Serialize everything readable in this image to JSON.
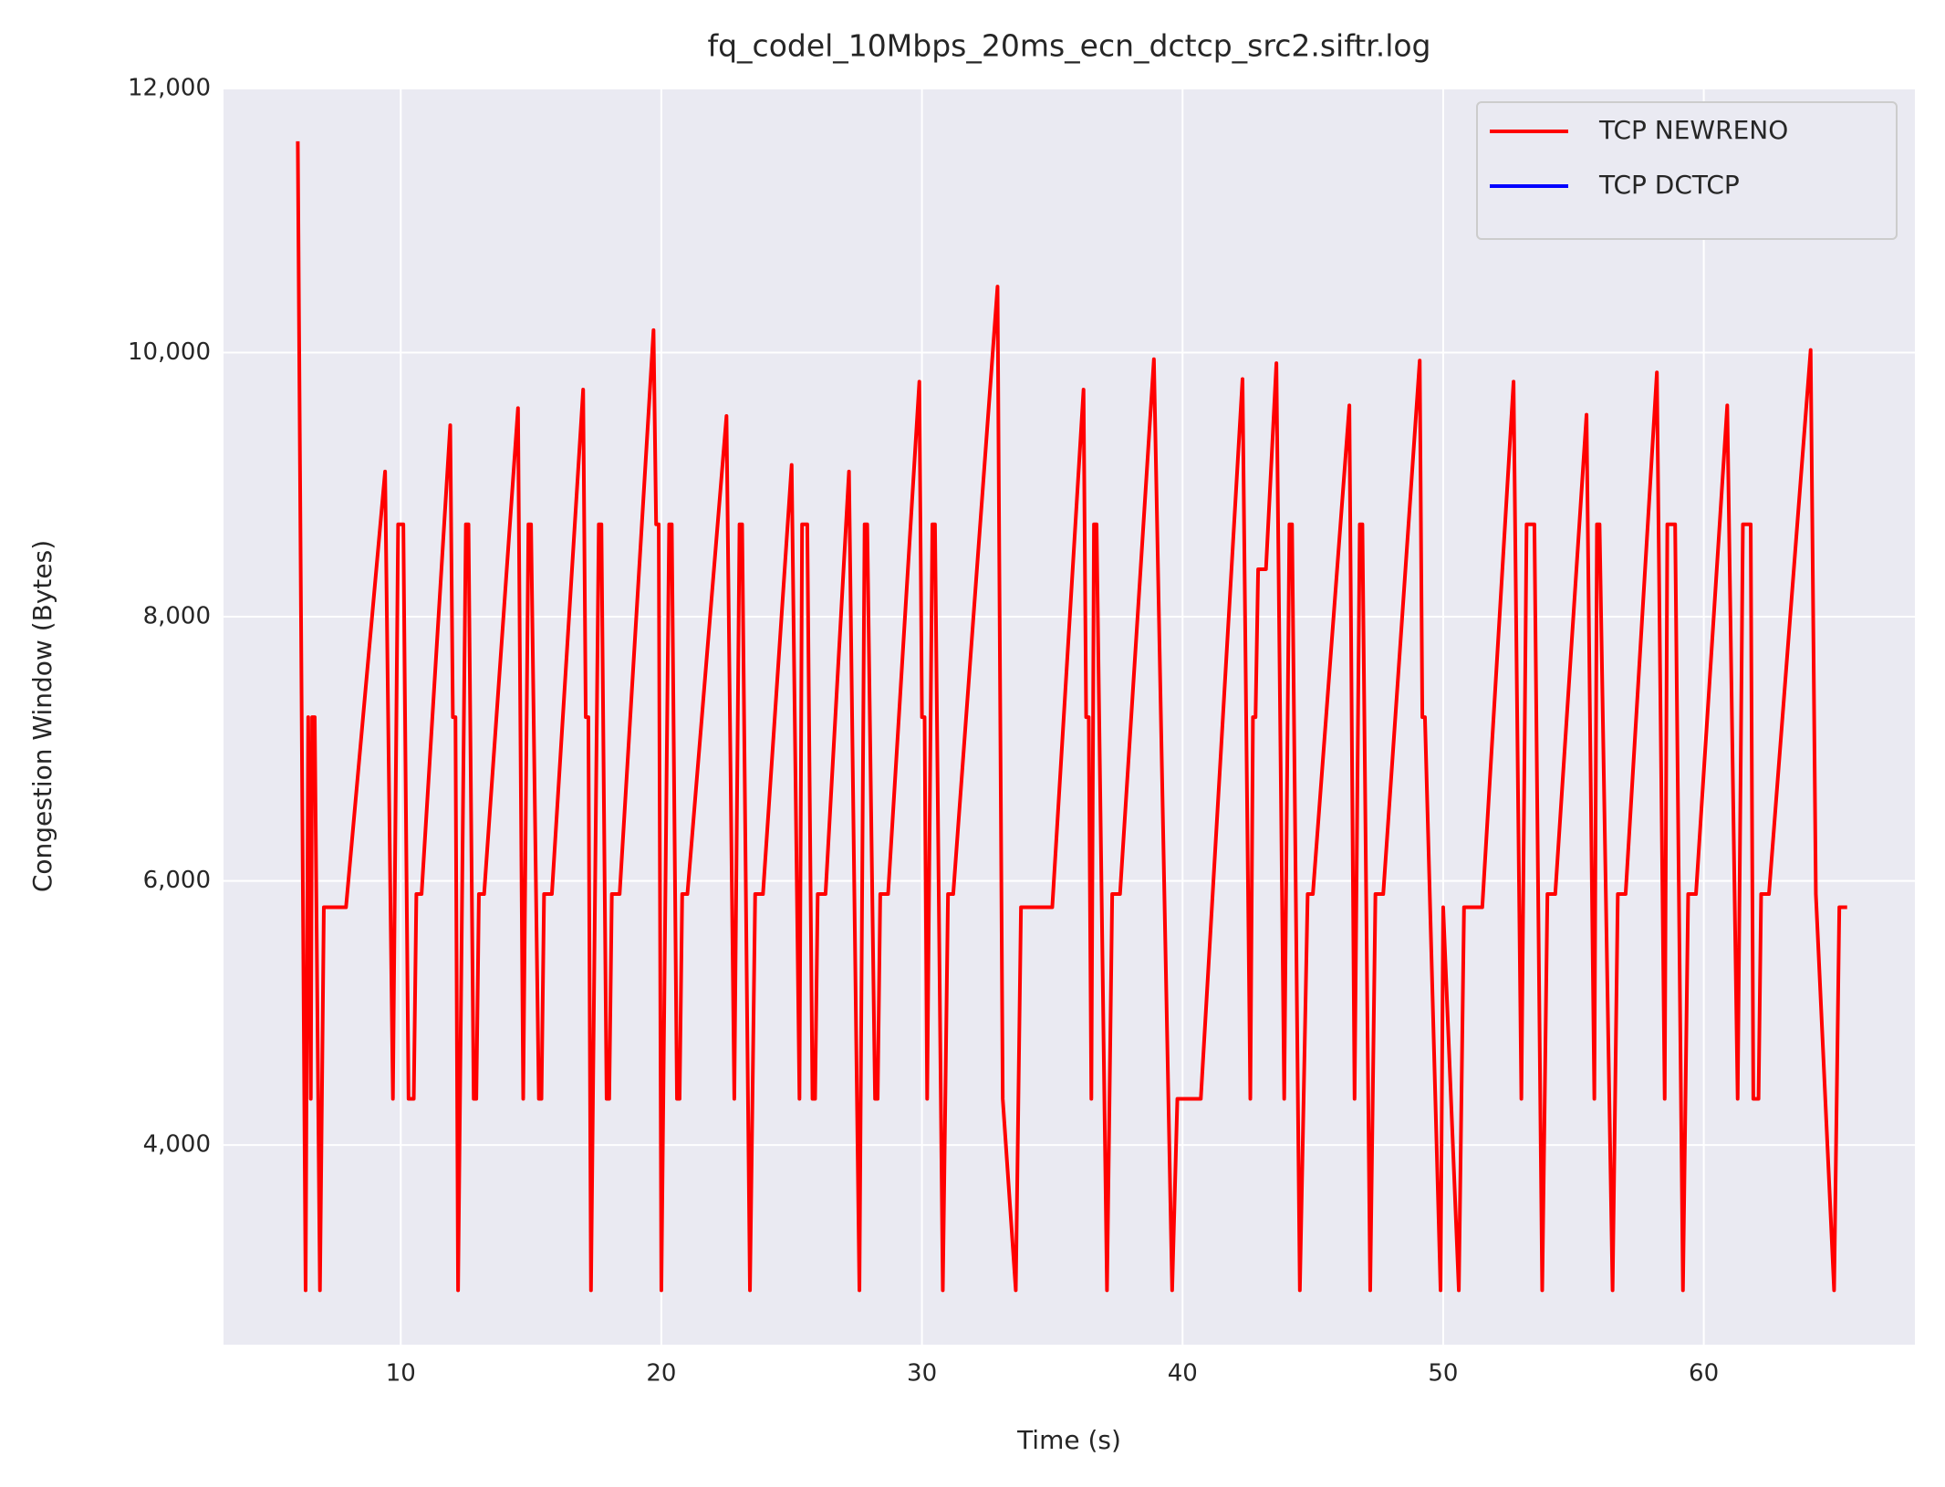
{
  "chart_data": {
    "type": "line",
    "title": "fq_codel_10Mbps_20ms_ecn_dctcp_src2.siftr.log",
    "x_label": "Time (s)",
    "y_label": "Congestion Window (Bytes)",
    "xlim": [
      3.2,
      68.1
    ],
    "ylim": [
      2488,
      12000
    ],
    "xticks": [
      10,
      20,
      30,
      40,
      50,
      60
    ],
    "yticks": [
      {
        "value": 4000,
        "label": "4,000"
      },
      {
        "value": 6000,
        "label": "6,000"
      },
      {
        "value": 8000,
        "label": "8,000"
      },
      {
        "value": 10000,
        "label": "10,000"
      },
      {
        "value": 12000,
        "label": "12,000"
      }
    ],
    "grid": true,
    "legend": "upper right",
    "series": [
      {
        "name": "TCP NEWRENO",
        "color": "#ff0000",
        "x": [
          6.05,
          6.35,
          6.45,
          6.55,
          6.6,
          6.7,
          6.9,
          7.05,
          7.9,
          9.4,
          9.7,
          9.9,
          10.1,
          10.3,
          10.5,
          10.6,
          10.8,
          11.9,
          12.0,
          12.1,
          12.2,
          12.5,
          12.6,
          12.8,
          12.9,
          13.0,
          13.2,
          14.5,
          14.7,
          14.9,
          15.0,
          15.3,
          15.4,
          15.5,
          15.8,
          17.0,
          17.1,
          17.2,
          17.3,
          17.6,
          17.7,
          17.9,
          18.0,
          18.1,
          18.4,
          19.7,
          19.8,
          19.9,
          20.0,
          20.3,
          20.4,
          20.6,
          20.7,
          20.8,
          21.0,
          22.5,
          22.8,
          23.0,
          23.1,
          23.4,
          23.6,
          23.9,
          25.0,
          25.3,
          25.4,
          25.6,
          25.8,
          25.9,
          26.0,
          26.3,
          27.2,
          27.6,
          27.8,
          27.9,
          28.2,
          28.3,
          28.4,
          28.7,
          29.9,
          30.0,
          30.1,
          30.2,
          30.4,
          30.5,
          30.8,
          31.0,
          31.2,
          32.9,
          33.1,
          33.6,
          33.8,
          35.0,
          36.2,
          36.3,
          36.4,
          36.5,
          36.6,
          36.7,
          37.1,
          37.3,
          37.6,
          38.9,
          39.6,
          39.8,
          40.7,
          42.3,
          42.6,
          42.7,
          42.8,
          42.9,
          43.2,
          43.6,
          43.9,
          44.1,
          44.2,
          44.5,
          44.8,
          45.0,
          46.4,
          46.6,
          46.8,
          46.9,
          47.2,
          47.4,
          47.7,
          49.1,
          49.2,
          49.3,
          49.9,
          50.0,
          50.6,
          50.8,
          51.5,
          52.7,
          53.0,
          53.2,
          53.5,
          53.8,
          54.0,
          54.3,
          55.5,
          55.8,
          55.9,
          56.0,
          56.5,
          56.7,
          57.0,
          58.2,
          58.5,
          58.6,
          58.9,
          59.2,
          59.4,
          59.7,
          60.9,
          61.3,
          61.5,
          61.8,
          61.9,
          62.1,
          62.2,
          62.5,
          64.1,
          64.3,
          65.0,
          65.2,
          65.5
        ],
        "values": [
          11600,
          2900,
          7240,
          4350,
          7240,
          7240,
          2900,
          5800,
          5800,
          9100,
          4350,
          8700,
          8700,
          4350,
          4350,
          5900,
          5900,
          9450,
          7240,
          7240,
          2900,
          8700,
          8700,
          4350,
          4350,
          5900,
          5900,
          9580,
          4350,
          8700,
          8700,
          4350,
          4350,
          5900,
          5900,
          9720,
          7240,
          7240,
          2900,
          8700,
          8700,
          4350,
          4350,
          5900,
          5900,
          10170,
          8700,
          8700,
          2900,
          8700,
          8700,
          4350,
          4350,
          5900,
          5900,
          9520,
          4350,
          8700,
          8700,
          2900,
          5900,
          5900,
          9150,
          4350,
          8700,
          8700,
          4350,
          4350,
          5900,
          5900,
          9100,
          2900,
          8700,
          8700,
          4350,
          4350,
          5900,
          5900,
          9780,
          7240,
          7240,
          4350,
          8700,
          8700,
          2900,
          5900,
          5900,
          10500,
          4350,
          2900,
          5800,
          5800,
          9720,
          7240,
          7240,
          4350,
          8700,
          8700,
          2900,
          5900,
          5900,
          9950,
          2900,
          4350,
          4350,
          9800,
          4350,
          7240,
          7240,
          8360,
          8360,
          9920,
          4350,
          8700,
          8700,
          2900,
          5900,
          5900,
          9600,
          4350,
          8700,
          8700,
          2900,
          5900,
          5900,
          9940,
          7240,
          7240,
          2900,
          5800,
          2900,
          5800,
          5800,
          9780,
          4350,
          8700,
          8700,
          2900,
          5900,
          5900,
          9530,
          4350,
          8700,
          8700,
          2900,
          5900,
          5900,
          9850,
          4350,
          8700,
          8700,
          2900,
          5900,
          5900,
          9600,
          4350,
          8700,
          8700,
          4350,
          4350,
          5900,
          5900,
          10020,
          5900,
          2900,
          5800,
          5800
        ]
      },
      {
        "name": "TCP DCTCP",
        "color": "#0000ff",
        "x": [],
        "values": []
      }
    ]
  }
}
